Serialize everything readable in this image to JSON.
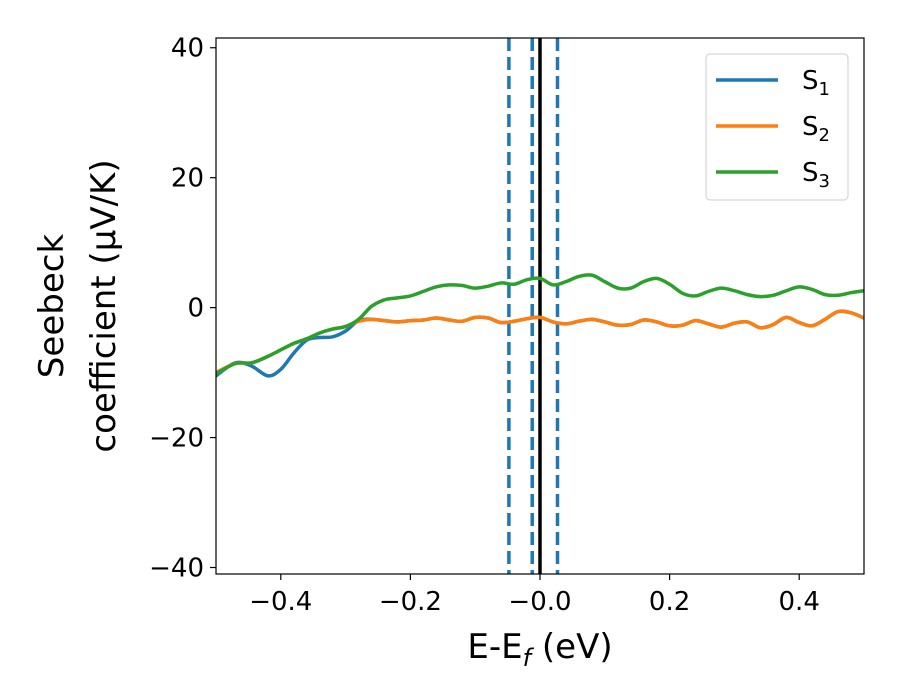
{
  "chart_data": {
    "type": "line",
    "title": "",
    "xlabel": {
      "main": "E-E",
      "sub": "f",
      "tail": " (eV)"
    },
    "ylabel": {
      "line1": "Seebeck",
      "line2": "coefficient  (μV/K)"
    },
    "xlim": [
      -0.5,
      0.5
    ],
    "ylim": [
      -41,
      41.5
    ],
    "xticks": [
      {
        "value": -0.4,
        "label": "−0.4"
      },
      {
        "value": -0.2,
        "label": "−0.2"
      },
      {
        "value": 0.0,
        "label": "−0.0"
      },
      {
        "value": 0.2,
        "label": "0.2"
      },
      {
        "value": 0.4,
        "label": "0.4"
      }
    ],
    "yticks": [
      {
        "value": 40,
        "label": "40"
      },
      {
        "value": 20,
        "label": "20"
      },
      {
        "value": 0,
        "label": "0"
      },
      {
        "value": -20,
        "label": "−20"
      },
      {
        "value": -40,
        "label": "−40"
      }
    ],
    "legend": {
      "position": "top-right"
    },
    "vlines": [
      {
        "x": -0.048,
        "style": "dashed",
        "color": "#1f77b4"
      },
      {
        "x": -0.012,
        "style": "dashed",
        "color": "#1f77b4"
      },
      {
        "x": 0.027,
        "style": "dashed",
        "color": "#1f77b4"
      },
      {
        "x": 0.0,
        "style": "solid",
        "color": "#000000"
      }
    ],
    "series": [
      {
        "name": "S",
        "sub": "1",
        "color": "#1f77b4",
        "x": [
          -0.5,
          -0.47,
          -0.445,
          -0.42,
          -0.4,
          -0.38,
          -0.36,
          -0.34,
          -0.32,
          -0.3,
          -0.28,
          -0.26,
          -0.24,
          -0.22,
          -0.2,
          -0.18,
          -0.16,
          -0.14,
          -0.12,
          -0.1,
          -0.08,
          -0.06,
          -0.04,
          -0.02,
          0.0,
          0.02,
          0.04,
          0.06,
          0.08,
          0.1,
          0.12,
          0.14,
          0.16,
          0.18,
          0.2,
          0.22,
          0.24,
          0.26,
          0.28,
          0.3,
          0.32,
          0.34,
          0.36,
          0.38,
          0.4,
          0.42,
          0.44,
          0.46,
          0.48,
          0.5
        ],
        "values": [
          -10.5,
          -8.5,
          -9.0,
          -10.5,
          -9.5,
          -7.0,
          -5.0,
          -4.6,
          -4.5,
          -3.6,
          -2.0,
          -1.8,
          -2.0,
          -2.2,
          -2.0,
          -1.9,
          -1.6,
          -1.9,
          -2.1,
          -1.5,
          -1.6,
          -2.3,
          -2.1,
          -1.7,
          -1.5,
          -2.2,
          -2.5,
          -2.1,
          -1.8,
          -2.2,
          -2.7,
          -2.6,
          -1.9,
          -2.2,
          -2.8,
          -2.7,
          -2.0,
          -2.5,
          -3.0,
          -2.4,
          -2.2,
          -3.1,
          -2.6,
          -1.5,
          -2.3,
          -2.8,
          -1.8,
          -0.6,
          -0.8,
          -1.6
        ]
      },
      {
        "name": "S",
        "sub": "2",
        "color": "#ff7f0e",
        "x": [
          -0.5,
          -0.47,
          -0.445,
          -0.42,
          -0.4,
          -0.38,
          -0.36,
          -0.34,
          -0.32,
          -0.3,
          -0.28,
          -0.26,
          -0.24,
          -0.22,
          -0.2,
          -0.18,
          -0.16,
          -0.14,
          -0.12,
          -0.1,
          -0.08,
          -0.06,
          -0.04,
          -0.02,
          0.0,
          0.02,
          0.04,
          0.06,
          0.08,
          0.1,
          0.12,
          0.14,
          0.16,
          0.18,
          0.2,
          0.22,
          0.24,
          0.26,
          0.28,
          0.3,
          0.32,
          0.34,
          0.36,
          0.38,
          0.4,
          0.42,
          0.44,
          0.46,
          0.48,
          0.5
        ],
        "values": [
          -10.0,
          -8.6,
          -8.5,
          -7.5,
          -6.5,
          -5.5,
          -4.8,
          -3.9,
          -3.3,
          -2.9,
          -2.1,
          -1.8,
          -2.0,
          -2.2,
          -2.0,
          -1.9,
          -1.6,
          -1.9,
          -2.1,
          -1.5,
          -1.6,
          -2.3,
          -2.1,
          -1.7,
          -1.5,
          -2.2,
          -2.5,
          -2.1,
          -1.8,
          -2.2,
          -2.7,
          -2.6,
          -1.9,
          -2.2,
          -2.8,
          -2.7,
          -2.0,
          -2.5,
          -3.0,
          -2.4,
          -2.2,
          -3.1,
          -2.6,
          -1.5,
          -2.3,
          -2.8,
          -1.8,
          -0.6,
          -0.8,
          -1.6
        ]
      },
      {
        "name": "S",
        "sub": "3",
        "color": "#2ca02c",
        "x": [
          -0.5,
          -0.47,
          -0.445,
          -0.42,
          -0.4,
          -0.38,
          -0.36,
          -0.34,
          -0.32,
          -0.3,
          -0.28,
          -0.26,
          -0.24,
          -0.22,
          -0.2,
          -0.18,
          -0.16,
          -0.14,
          -0.12,
          -0.1,
          -0.08,
          -0.06,
          -0.04,
          -0.02,
          0.0,
          0.02,
          0.04,
          0.06,
          0.08,
          0.1,
          0.12,
          0.14,
          0.16,
          0.18,
          0.2,
          0.22,
          0.24,
          0.26,
          0.28,
          0.3,
          0.32,
          0.34,
          0.36,
          0.38,
          0.4,
          0.42,
          0.44,
          0.46,
          0.48,
          0.5
        ],
        "values": [
          -10.2,
          -8.6,
          -8.5,
          -7.5,
          -6.5,
          -5.5,
          -4.8,
          -3.9,
          -3.3,
          -2.9,
          -1.8,
          0.2,
          1.2,
          1.5,
          1.8,
          2.5,
          3.2,
          3.5,
          3.4,
          3.0,
          3.3,
          3.8,
          3.6,
          4.3,
          4.5,
          3.5,
          4.0,
          4.8,
          5.0,
          4.0,
          3.0,
          3.0,
          4.0,
          4.5,
          3.6,
          2.2,
          1.8,
          2.5,
          3.0,
          2.6,
          2.0,
          1.7,
          1.9,
          2.6,
          3.2,
          2.8,
          2.0,
          1.9,
          2.3,
          2.6
        ]
      }
    ]
  }
}
